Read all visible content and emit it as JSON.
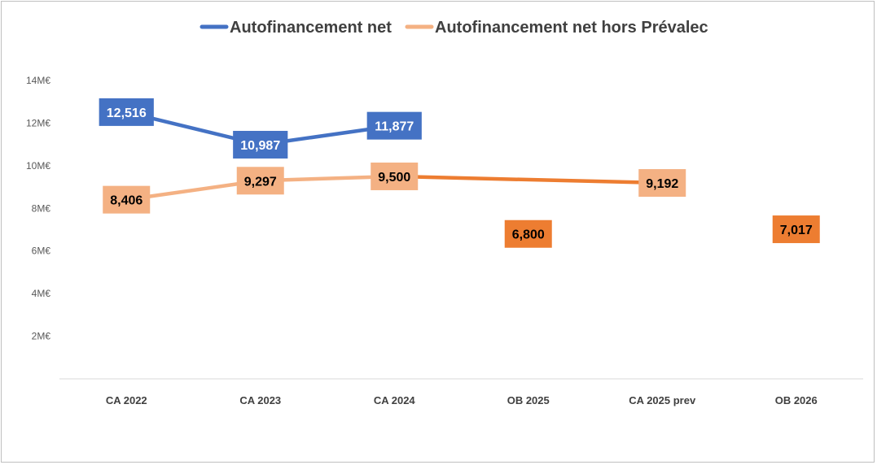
{
  "chart_data": {
    "type": "line",
    "categories": [
      "CA 2022",
      "CA 2023",
      "CA 2024",
      "OB 2025",
      "CA 2025 prev",
      "OB 2026"
    ],
    "y_ticks": [
      "14M€",
      "12M€",
      "10M€",
      "8M€",
      "6M€",
      "4M€",
      "2M€"
    ],
    "y_tick_values": [
      14,
      12,
      10,
      8,
      6,
      4,
      2
    ],
    "ylim": [
      0,
      14
    ],
    "legend_position": "top",
    "grid": false,
    "series": [
      {
        "name": "Autofinancement net",
        "color": "#4472c4",
        "label_text_color": "#ffffff",
        "values": [
          12.516,
          10.987,
          11.877,
          null,
          null,
          null
        ],
        "labels": [
          "12,516",
          "10,987",
          "11,877",
          null,
          null,
          null
        ]
      },
      {
        "name": "Autofinancement net hors Prévalec",
        "color": "#f4b183",
        "segment_color_after_index_2": "#ed7d31",
        "label_text_color": "#000000",
        "values": [
          8.406,
          9.297,
          9.5,
          null,
          9.192,
          null
        ],
        "labels": [
          "8,406",
          "9,297",
          "9,500",
          null,
          "9,192",
          null
        ]
      }
    ],
    "standalone_labels": [
      {
        "category": "OB 2025",
        "value": 6.8,
        "label": "6,800",
        "color": "#ed7d31",
        "text_color": "#000000"
      },
      {
        "category": "OB 2026",
        "value": 7.017,
        "label": "7,017",
        "color": "#ed7d31",
        "text_color": "#000000"
      }
    ]
  }
}
